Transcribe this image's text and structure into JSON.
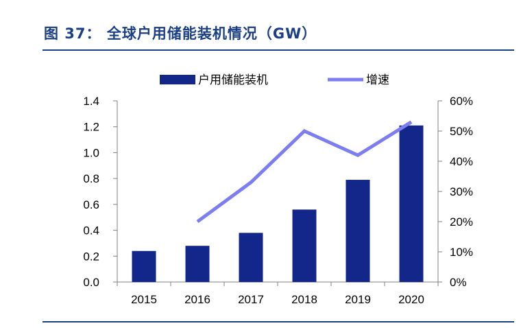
{
  "figure": {
    "title": "图 37： 全球户用储能装机情况（GW）"
  },
  "chart_data": {
    "type": "bar",
    "categories": [
      "2015",
      "2016",
      "2017",
      "2018",
      "2019",
      "2020"
    ],
    "series": [
      {
        "name": "户用储能装机",
        "type": "bar",
        "axis": "left",
        "values": [
          0.24,
          0.28,
          0.38,
          0.56,
          0.79,
          1.21
        ],
        "color": "#13268a"
      },
      {
        "name": "增速",
        "type": "line",
        "axis": "right",
        "values": [
          null,
          0.2,
          0.33,
          0.5,
          0.42,
          0.53
        ],
        "color": "#7b7df0"
      }
    ],
    "y_left": {
      "min": 0,
      "max": 1.4,
      "ticks": [
        "0.0",
        "0.2",
        "0.4",
        "0.6",
        "0.8",
        "1.0",
        "1.2",
        "1.4"
      ]
    },
    "y_right": {
      "min": 0,
      "max": 0.6,
      "ticks": [
        "0%",
        "10%",
        "20%",
        "30%",
        "40%",
        "50%",
        "60%"
      ]
    },
    "legend_position": "top",
    "grid": false
  }
}
